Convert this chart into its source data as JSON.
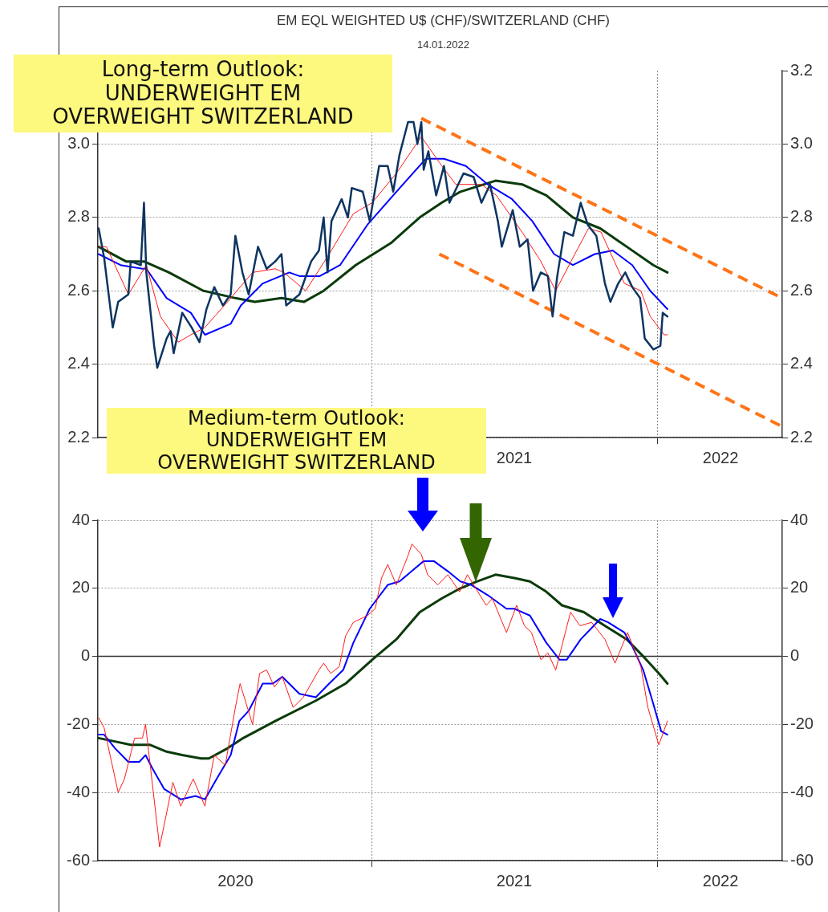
{
  "chart_data": [
    {
      "type": "line",
      "title": "EM EQL WEIGHTED U$ (CHF)/SWITZERLAND (CHF)",
      "subtitle": "14.01.2022",
      "annotations": [
        "Long-term Outlook:\nUNDERWEIGHT EM\nOVERWEIGHT SWITZERLAND"
      ],
      "xlim": [
        "2020-01-16",
        "2022-06-10"
      ],
      "xticks": [
        {
          "value": "2021-01-01",
          "label": null
        },
        {
          "value": "2021-07-02",
          "label": "2021"
        },
        {
          "value": "2022-01-01",
          "label": null
        },
        {
          "value": "2022-03-23",
          "label": "2022"
        }
      ],
      "ylim": [
        2.2,
        3.2
      ],
      "yticks": [
        2.2,
        2.4,
        2.6,
        2.8,
        {
          "value": 3.0,
          "label": "3.0"
        }
      ],
      "y2lim": [
        2.2,
        3.2
      ],
      "y2ticks": [
        2.2,
        2.4,
        2.6,
        2.8,
        {
          "value": 3.0,
          "label": "3.0"
        },
        3.2
      ],
      "grid": true,
      "marker": "none",
      "series": [
        {
          "color": "#0d3461",
          "x": [
            "2020-01-17",
            "2020-01-24",
            "2020-02-04",
            "2020-02-11",
            "2020-02-24",
            "2020-02-27",
            "2020-03-11",
            "2020-03-15",
            "2020-03-18",
            "2020-03-28",
            "2020-04-01",
            "2020-04-13",
            "2020-04-18",
            "2020-04-22",
            "2020-05-03",
            "2020-05-15",
            "2020-05-25",
            "2020-06-03",
            "2020-06-13",
            "2020-06-24",
            "2020-07-04",
            "2020-07-10",
            "2020-07-19",
            "2020-07-27",
            "2020-08-08",
            "2020-08-19",
            "2020-08-30",
            "2020-09-07",
            "2020-09-13",
            "2020-09-30",
            "2020-10-15",
            "2020-10-25",
            "2020-10-31",
            "2020-11-05",
            "2020-11-10",
            "2020-11-23",
            "2020-12-01",
            "2020-12-06",
            "2020-12-20",
            "2020-12-29",
            "2021-01-10",
            "2021-01-21",
            "2021-01-28",
            "2021-02-05",
            "2021-02-16",
            "2021-02-23",
            "2021-02-28",
            "2021-03-05",
            "2021-03-08",
            "2021-03-14",
            "2021-03-24",
            "2021-04-03",
            "2021-04-10",
            "2021-04-28",
            "2021-05-11",
            "2021-05-21",
            "2021-06-01",
            "2021-06-11",
            "2021-06-16",
            "2021-06-30",
            "2021-07-09",
            "2021-07-19",
            "2021-07-26",
            "2021-08-05",
            "2021-08-14",
            "2021-08-20",
            "2021-08-26",
            "2021-09-04",
            "2021-09-15",
            "2021-09-25",
            "2021-10-04",
            "2021-10-15",
            "2021-10-26",
            "2021-11-02",
            "2021-11-12",
            "2021-11-21",
            "2021-11-30",
            "2021-12-10",
            "2021-12-16",
            "2021-12-27",
            "2022-01-05",
            "2022-01-08",
            "2022-01-14"
          ],
          "values": [
            2.77,
            2.69,
            2.5,
            2.57,
            2.59,
            2.68,
            2.67,
            2.84,
            2.65,
            2.45,
            2.39,
            2.47,
            2.49,
            2.43,
            2.54,
            2.5,
            2.46,
            2.55,
            2.61,
            2.56,
            2.59,
            2.75,
            2.65,
            2.59,
            2.72,
            2.66,
            2.68,
            2.7,
            2.56,
            2.59,
            2.68,
            2.71,
            2.8,
            2.65,
            2.79,
            2.85,
            2.8,
            2.88,
            2.87,
            2.79,
            2.94,
            2.94,
            2.87,
            2.97,
            3.06,
            3.06,
            3.0,
            3.06,
            2.93,
            2.98,
            2.86,
            2.94,
            2.84,
            2.92,
            2.91,
            2.84,
            2.89,
            2.79,
            2.72,
            2.82,
            2.72,
            2.74,
            2.6,
            2.65,
            2.64,
            2.53,
            2.64,
            2.76,
            2.75,
            2.84,
            2.78,
            2.75,
            2.62,
            2.57,
            2.62,
            2.65,
            2.61,
            2.58,
            2.47,
            2.44,
            2.45,
            2.54,
            2.53
          ]
        },
        {
          "color": "#ff1a1a",
          "x": [
            "2020-01-17",
            "2020-01-27",
            "2020-02-24",
            "2020-03-18",
            "2020-04-05",
            "2020-04-28",
            "2020-05-14",
            "2020-06-01",
            "2020-06-30",
            "2020-08-01",
            "2020-08-30",
            "2020-09-10",
            "2020-10-08",
            "2020-11-07",
            "2020-12-08",
            "2021-01-01",
            "2021-02-01",
            "2021-03-05",
            "2021-03-28",
            "2021-04-18",
            "2021-05-21",
            "2021-06-09",
            "2021-07-12",
            "2021-08-05",
            "2021-08-24",
            "2021-09-15",
            "2021-10-05",
            "2021-10-21",
            "2021-11-20",
            "2021-12-11",
            "2021-12-23",
            "2022-01-10",
            "2022-01-14"
          ],
          "values": [
            2.72,
            2.72,
            2.59,
            2.67,
            2.53,
            2.46,
            2.48,
            2.5,
            2.57,
            2.65,
            2.66,
            2.65,
            2.6,
            2.7,
            2.81,
            2.84,
            2.92,
            3.02,
            2.95,
            2.89,
            2.89,
            2.86,
            2.76,
            2.68,
            2.6,
            2.69,
            2.77,
            2.76,
            2.62,
            2.6,
            2.53,
            2.48,
            2.48
          ]
        },
        {
          "color": "#0000ff",
          "x": [
            "2020-01-17",
            "2020-02-14",
            "2020-03-13",
            "2020-03-18",
            "2020-04-13",
            "2020-05-14",
            "2020-06-01",
            "2020-07-04",
            "2020-07-17",
            "2020-08-14",
            "2020-09-17",
            "2020-09-30",
            "2020-10-26",
            "2020-11-21",
            "2020-12-26",
            "2021-01-28",
            "2021-03-11",
            "2021-04-03",
            "2021-05-01",
            "2021-05-29",
            "2021-06-29",
            "2021-07-25",
            "2021-08-22",
            "2021-09-15",
            "2021-10-13",
            "2021-11-05",
            "2021-11-30",
            "2021-12-23",
            "2022-01-14"
          ],
          "values": [
            2.7,
            2.67,
            2.66,
            2.66,
            2.58,
            2.54,
            2.48,
            2.51,
            2.56,
            2.62,
            2.65,
            2.64,
            2.64,
            2.67,
            2.78,
            2.86,
            2.96,
            2.96,
            2.94,
            2.89,
            2.85,
            2.79,
            2.7,
            2.67,
            2.7,
            2.71,
            2.67,
            2.6,
            2.55
          ]
        },
        {
          "color": "#0b3b0b",
          "x": [
            "2020-01-17",
            "2020-02-21",
            "2020-03-15",
            "2020-04-16",
            "2020-05-30",
            "2020-07-10",
            "2020-08-04",
            "2020-09-07",
            "2020-10-06",
            "2020-10-31",
            "2020-12-11",
            "2021-01-25",
            "2021-03-03",
            "2021-03-31",
            "2021-04-24",
            "2021-06-08",
            "2021-07-12",
            "2021-08-12",
            "2021-09-15",
            "2021-10-20",
            "2021-11-23",
            "2021-12-27",
            "2022-01-14"
          ],
          "values": [
            2.72,
            2.68,
            2.68,
            2.65,
            2.6,
            2.58,
            2.57,
            2.58,
            2.57,
            2.6,
            2.67,
            2.73,
            2.8,
            2.84,
            2.87,
            2.9,
            2.89,
            2.86,
            2.8,
            2.77,
            2.72,
            2.67,
            2.65
          ]
        },
        {
          "color": "#ff7417",
          "line_style": "dashed",
          "x": [
            "2021-03-05",
            "2022-06-10"
          ],
          "values": [
            3.07,
            2.58
          ]
        },
        {
          "color": "#ff7417",
          "line_style": "dashed",
          "x": [
            "2021-03-28",
            "2022-06-10"
          ],
          "values": [
            2.7,
            2.23
          ]
        }
      ]
    },
    {
      "type": "line",
      "annotations": [
        "Medium-term Outlook:\nUNDERWEIGHT EM\nOVERWEIGHT SWITZERLAND"
      ],
      "xlim": [
        "2020-01-16",
        "2022-06-10"
      ],
      "xticks": [
        {
          "value": "2020-07-10",
          "label": "2020"
        },
        {
          "value": "2021-01-01",
          "label": null
        },
        {
          "value": "2021-07-02",
          "label": "2021"
        },
        {
          "value": "2022-01-01",
          "label": null
        },
        {
          "value": "2022-03-23",
          "label": "2022"
        }
      ],
      "ylim": [
        -60,
        40
      ],
      "yticks": [
        -60,
        -40,
        -20,
        0,
        20,
        40
      ],
      "y2lim": [
        -60,
        40
      ],
      "y2ticks": [
        -60,
        -40,
        -20,
        0,
        20,
        40
      ],
      "grid": true,
      "marker": "none",
      "ref_lines": [
        {
          "axis": "y",
          "value": 0,
          "color": "#333333"
        }
      ],
      "series": [
        {
          "color": "#ff1a1a",
          "x": [
            "2020-01-17",
            "2020-01-24",
            "2020-02-11",
            "2020-02-19",
            "2020-03-03",
            "2020-03-13",
            "2020-03-17",
            "2020-04-04",
            "2020-04-21",
            "2020-05-01",
            "2020-05-17",
            "2020-06-01",
            "2020-06-13",
            "2020-06-27",
            "2020-07-10",
            "2020-07-16",
            "2020-08-01",
            "2020-08-10",
            "2020-08-19",
            "2020-08-29",
            "2020-09-08",
            "2020-09-22",
            "2020-10-05",
            "2020-10-25",
            "2020-10-31",
            "2020-11-09",
            "2020-11-20",
            "2020-11-28",
            "2020-12-08",
            "2020-12-26",
            "2021-01-05",
            "2021-01-13",
            "2021-01-21",
            "2021-02-01",
            "2021-02-15",
            "2021-02-21",
            "2021-03-05",
            "2021-03-13",
            "2021-03-26",
            "2021-04-08",
            "2021-04-23",
            "2021-05-03",
            "2021-05-27",
            "2021-06-04",
            "2021-06-22",
            "2021-07-05",
            "2021-07-15",
            "2021-07-24",
            "2021-08-05",
            "2021-08-14",
            "2021-08-24",
            "2021-09-12",
            "2021-09-24",
            "2021-10-09",
            "2021-10-26",
            "2021-11-08",
            "2021-11-24",
            "2021-12-11",
            "2021-12-20",
            "2022-01-03",
            "2022-01-14"
          ],
          "values": [
            -18,
            -21,
            -40,
            -36,
            -24,
            -24,
            -20,
            -56,
            -37,
            -44,
            -36,
            -44,
            -29,
            -32,
            -15,
            -8,
            -20,
            -5,
            -4,
            -9,
            -6,
            -15,
            -12,
            -4,
            -2,
            -5,
            -3,
            6,
            10,
            12,
            14,
            23,
            27,
            21,
            29,
            33,
            30,
            24,
            21,
            24,
            19,
            24,
            15,
            17,
            7,
            15,
            9,
            7,
            -1,
            1,
            -4,
            13,
            9,
            10,
            5,
            -2,
            7,
            -3,
            -15,
            -26,
            -19
          ]
        },
        {
          "color": "#0000ff",
          "x": [
            "2020-01-17",
            "2020-01-24",
            "2020-02-07",
            "2020-02-24",
            "2020-03-09",
            "2020-03-17",
            "2020-03-26",
            "2020-04-10",
            "2020-05-01",
            "2020-05-20",
            "2020-06-01",
            "2020-06-16",
            "2020-07-04",
            "2020-07-15",
            "2020-07-27",
            "2020-08-14",
            "2020-08-27",
            "2020-09-08",
            "2020-09-30",
            "2020-10-21",
            "2020-11-07",
            "2020-11-25",
            "2020-12-08",
            "2020-12-29",
            "2021-01-21",
            "2021-02-05",
            "2021-03-08",
            "2021-03-21",
            "2021-04-08",
            "2021-04-24",
            "2021-05-08",
            "2021-05-29",
            "2021-06-22",
            "2021-07-02",
            "2021-07-22",
            "2021-08-12",
            "2021-08-29",
            "2021-09-07",
            "2021-09-25",
            "2021-10-20",
            "2021-10-30",
            "2021-11-20",
            "2021-11-30",
            "2021-12-14",
            "2021-12-27",
            "2022-01-06",
            "2022-01-14"
          ],
          "values": [
            -23,
            -23,
            -27,
            -31,
            -31,
            -29,
            -33,
            -39,
            -42,
            -41,
            -42,
            -36,
            -29,
            -19,
            -16,
            -8,
            -8,
            -6,
            -11,
            -12,
            -8,
            -4,
            4,
            14,
            21,
            22,
            28,
            28,
            25,
            22,
            21,
            18,
            14,
            14,
            12,
            4,
            -1,
            -1,
            5,
            11,
            10,
            7,
            3,
            -4,
            -14,
            -22,
            -23
          ]
        },
        {
          "color": "#0b3b0b",
          "x": [
            "2020-01-17",
            "2020-02-07",
            "2020-02-27",
            "2020-03-23",
            "2020-04-13",
            "2020-05-03",
            "2020-05-27",
            "2020-06-06",
            "2020-06-30",
            "2020-07-20",
            "2020-08-30",
            "2020-10-21",
            "2020-11-28",
            "2021-01-01",
            "2021-02-01",
            "2021-03-03",
            "2021-03-31",
            "2021-04-08",
            "2021-04-24",
            "2021-05-15",
            "2021-06-08",
            "2021-07-02",
            "2021-07-22",
            "2021-08-12",
            "2021-09-01",
            "2021-09-29",
            "2021-10-26",
            "2021-11-23",
            "2021-12-14",
            "2022-01-03",
            "2022-01-14"
          ],
          "values": [
            -24,
            -25,
            -26,
            -26,
            -28,
            -29,
            -30,
            -30,
            -27,
            -24,
            -19,
            -13,
            -8,
            -1,
            5,
            13,
            17,
            18,
            20,
            22,
            24,
            23,
            22,
            19,
            15,
            13,
            9,
            5,
            0,
            -5,
            -8
          ]
        }
      ]
    }
  ]
}
